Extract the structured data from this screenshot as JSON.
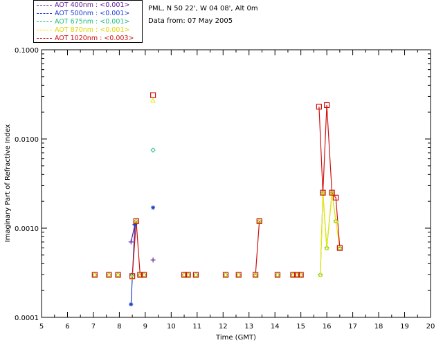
{
  "header": {
    "site": "PML, N 50 22', W 04 08', Alt 0m",
    "date": "Data from: 07 May 2005"
  },
  "legend": [
    {
      "label": "AOT  400nm : <0.001>",
      "color": "#5a1a9a"
    },
    {
      "label": "AOT  500nm : <0.001>",
      "color": "#1c3fd1"
    },
    {
      "label": "AOT  675nm : <0.001>",
      "color": "#22c07a"
    },
    {
      "label": "AOT  870nm : <0.001>",
      "color": "#f2e600"
    },
    {
      "label": "AOT 1020nm : <0.003>",
      "color": "#d01010"
    }
  ],
  "chart_data": {
    "type": "scatter",
    "xlabel": "Time (GMT)",
    "ylabel": "Imaginary Part of Refractive Index",
    "xlim": [
      5,
      20
    ],
    "ylim": [
      0.0001,
      0.1
    ],
    "yscale": "log",
    "x_ticks": [
      5,
      6,
      7,
      8,
      9,
      10,
      11,
      12,
      13,
      14,
      15,
      16,
      17,
      18,
      19,
      20
    ],
    "y_ticks": [
      {
        "value": 0.0001,
        "label": "0.0001"
      },
      {
        "value": 0.001,
        "label": "0.0010"
      },
      {
        "value": 0.01,
        "label": "0.0100"
      },
      {
        "value": 0.1,
        "label": "0.1000"
      }
    ],
    "series": [
      {
        "color": "#5a1a9a",
        "marker": "plus",
        "points": [
          [
            8.45,
            0.0007
          ],
          [
            8.6,
            0.0011
          ],
          [
            9.3,
            0.00044
          ]
        ],
        "lines": [
          [
            [
              8.45,
              0.0007
            ],
            [
              8.6,
              0.0011
            ]
          ]
        ]
      },
      {
        "color": "#1c3fd1",
        "marker": "asterisk",
        "points": [
          [
            8.45,
            0.00014
          ],
          [
            8.6,
            0.0011
          ],
          [
            9.3,
            0.0017
          ]
        ],
        "lines": [
          [
            [
              8.45,
              0.00014
            ],
            [
              8.6,
              0.0011
            ]
          ]
        ]
      },
      {
        "color": "#22c07a",
        "marker": "diamond",
        "points": [
          [
            7.05,
            0.0003
          ],
          [
            7.6,
            0.0003
          ],
          [
            7.95,
            0.0003
          ],
          [
            8.5,
            0.0003
          ],
          [
            8.65,
            0.0012
          ],
          [
            8.8,
            0.0003
          ],
          [
            8.95,
            0.0003
          ],
          [
            9.3,
            0.0075
          ],
          [
            10.5,
            0.0003
          ],
          [
            10.65,
            0.0003
          ],
          [
            10.95,
            0.0003
          ],
          [
            12.1,
            0.0003
          ],
          [
            12.6,
            0.0003
          ],
          [
            13.25,
            0.0003
          ],
          [
            13.4,
            0.0012
          ],
          [
            14.1,
            0.0003
          ],
          [
            14.7,
            0.0003
          ],
          [
            14.85,
            0.0003
          ],
          [
            15.0,
            0.0003
          ],
          [
            15.75,
            0.0003
          ],
          [
            15.85,
            0.0025
          ],
          [
            16.0,
            0.0006
          ],
          [
            16.2,
            0.0025
          ],
          [
            16.35,
            0.0012
          ],
          [
            16.5,
            0.0006
          ]
        ],
        "lines": [
          [
            [
              15.75,
              0.0003
            ],
            [
              15.85,
              0.0025
            ],
            [
              16.0,
              0.0006
            ],
            [
              16.2,
              0.0025
            ],
            [
              16.35,
              0.0012
            ]
          ]
        ]
      },
      {
        "color": "#f2e600",
        "marker": "triangle",
        "points": [
          [
            7.05,
            0.0003
          ],
          [
            7.6,
            0.0003
          ],
          [
            7.95,
            0.0003
          ],
          [
            8.5,
            0.00028
          ],
          [
            8.65,
            0.0012
          ],
          [
            8.8,
            0.0003
          ],
          [
            8.95,
            0.0003
          ],
          [
            9.3,
            0.027
          ],
          [
            10.5,
            0.0003
          ],
          [
            10.65,
            0.0003
          ],
          [
            10.95,
            0.0003
          ],
          [
            12.1,
            0.0003
          ],
          [
            12.6,
            0.0003
          ],
          [
            13.25,
            0.0003
          ],
          [
            13.4,
            0.0012
          ],
          [
            14.1,
            0.0003
          ],
          [
            14.7,
            0.0003
          ],
          [
            14.85,
            0.0003
          ],
          [
            15.0,
            0.0003
          ],
          [
            15.75,
            0.0003
          ],
          [
            15.85,
            0.0025
          ],
          [
            16.0,
            0.0006
          ],
          [
            16.2,
            0.0025
          ],
          [
            16.35,
            0.0012
          ],
          [
            16.5,
            0.0006
          ]
        ],
        "lines": [
          [
            [
              15.75,
              0.0003
            ],
            [
              15.85,
              0.0025
            ],
            [
              16.0,
              0.0006
            ],
            [
              16.2,
              0.0025
            ],
            [
              16.35,
              0.0012
            ],
            [
              16.5,
              0.0006
            ]
          ]
        ]
      },
      {
        "color": "#d01010",
        "marker": "square",
        "points": [
          [
            7.05,
            0.0003
          ],
          [
            7.6,
            0.0003
          ],
          [
            7.95,
            0.0003
          ],
          [
            8.5,
            0.00029
          ],
          [
            8.65,
            0.0012
          ],
          [
            8.8,
            0.0003
          ],
          [
            8.95,
            0.0003
          ],
          [
            9.3,
            0.031
          ],
          [
            10.5,
            0.0003
          ],
          [
            10.65,
            0.0003
          ],
          [
            10.95,
            0.0003
          ],
          [
            12.1,
            0.0003
          ],
          [
            12.6,
            0.0003
          ],
          [
            13.25,
            0.0003
          ],
          [
            13.4,
            0.0012
          ],
          [
            14.1,
            0.0003
          ],
          [
            14.7,
            0.0003
          ],
          [
            14.85,
            0.0003
          ],
          [
            15.0,
            0.0003
          ],
          [
            15.7,
            0.023
          ],
          [
            15.85,
            0.0025
          ],
          [
            16.0,
            0.024
          ],
          [
            16.2,
            0.0025
          ],
          [
            16.35,
            0.0022
          ],
          [
            16.5,
            0.0006
          ]
        ],
        "lines": [
          [
            [
              8.5,
              0.00029
            ],
            [
              8.65,
              0.0012
            ],
            [
              8.8,
              0.0003
            ]
          ],
          [
            [
              13.25,
              0.0003
            ],
            [
              13.4,
              0.0012
            ]
          ],
          [
            [
              15.7,
              0.023
            ],
            [
              15.85,
              0.0025
            ],
            [
              16.0,
              0.024
            ],
            [
              16.2,
              0.0025
            ],
            [
              16.35,
              0.0022
            ],
            [
              16.5,
              0.0006
            ]
          ]
        ]
      }
    ]
  }
}
